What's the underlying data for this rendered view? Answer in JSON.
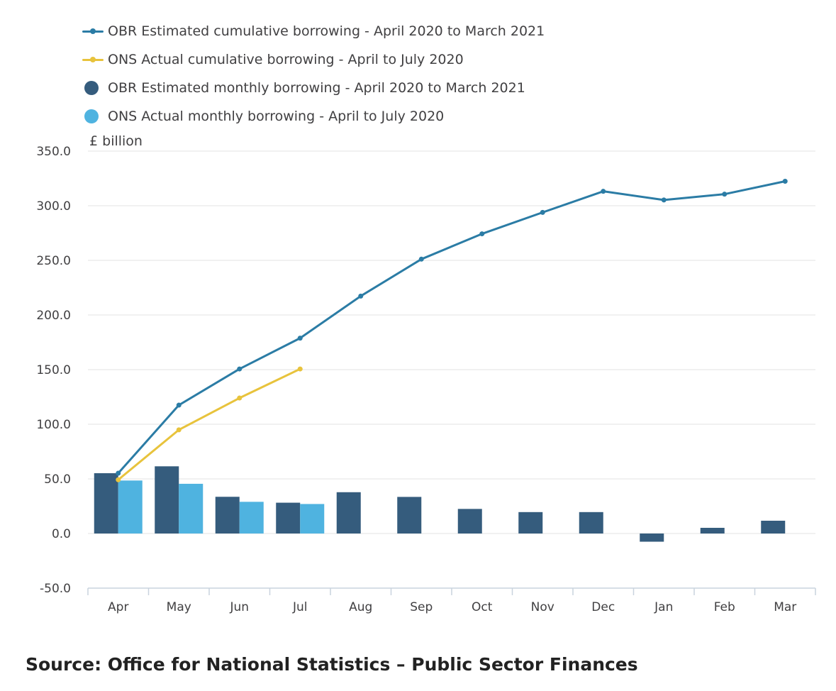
{
  "chart_data": {
    "type": "bar",
    "unit_label": "£ billion",
    "categories": [
      "Apr",
      "May",
      "Jun",
      "Jul",
      "Aug",
      "Sep",
      "Oct",
      "Nov",
      "Dec",
      "Jan",
      "Feb",
      "Mar"
    ],
    "ylim": [
      -50,
      350
    ],
    "yticks": [
      "350.0",
      "300.0",
      "250.0",
      "200.0",
      "150.0",
      "100.0",
      "50.0",
      "0.0",
      "-50.0"
    ],
    "grid": true,
    "legend_position": "top-left",
    "bar_series": [
      {
        "name": "OBR Estimated monthly borrowing - April 2020 to March 2021",
        "color": "#355c7d",
        "values": [
          55.2,
          61.5,
          33.6,
          28.2,
          37.8,
          33.5,
          22.5,
          19.6,
          19.6,
          -7.5,
          5.2,
          11.7
        ]
      },
      {
        "name": "ONS Actual monthly borrowing - April to July 2020",
        "color": "#4fb3e0",
        "values": [
          48.5,
          45.5,
          29.0,
          27.0,
          null,
          null,
          null,
          null,
          null,
          null,
          null,
          null
        ]
      }
    ],
    "line_series": [
      {
        "name": "OBR Estimated cumulative borrowing - April 2020 to March 2021",
        "color": "#2b7ca5",
        "values": [
          55.2,
          117.5,
          150.6,
          178.8,
          217.3,
          251.1,
          274.3,
          293.9,
          313.2,
          305.3,
          310.6,
          322.4
        ]
      },
      {
        "name": "ONS Actual cumulative borrowing - April to July 2020",
        "color": "#e8c33c",
        "values": [
          49.2,
          94.9,
          124.0,
          150.6,
          null,
          null,
          null,
          null,
          null,
          null,
          null,
          null
        ]
      }
    ]
  },
  "legend": [
    {
      "label": "OBR Estimated cumulative borrowing - April 2020 to March 2021",
      "kind": "line",
      "color": "#2b7ca5"
    },
    {
      "label": "ONS Actual cumulative borrowing - April to July 2020",
      "kind": "line",
      "color": "#e8c33c"
    },
    {
      "label": "OBR Estimated monthly borrowing - April 2020 to March 2021",
      "kind": "bar",
      "color": "#355c7d"
    },
    {
      "label": "ONS Actual monthly borrowing - April to July 2020",
      "kind": "bar",
      "color": "#4fb3e0"
    }
  ],
  "source": "Source: Office for National Statistics – Public Sector Finances"
}
